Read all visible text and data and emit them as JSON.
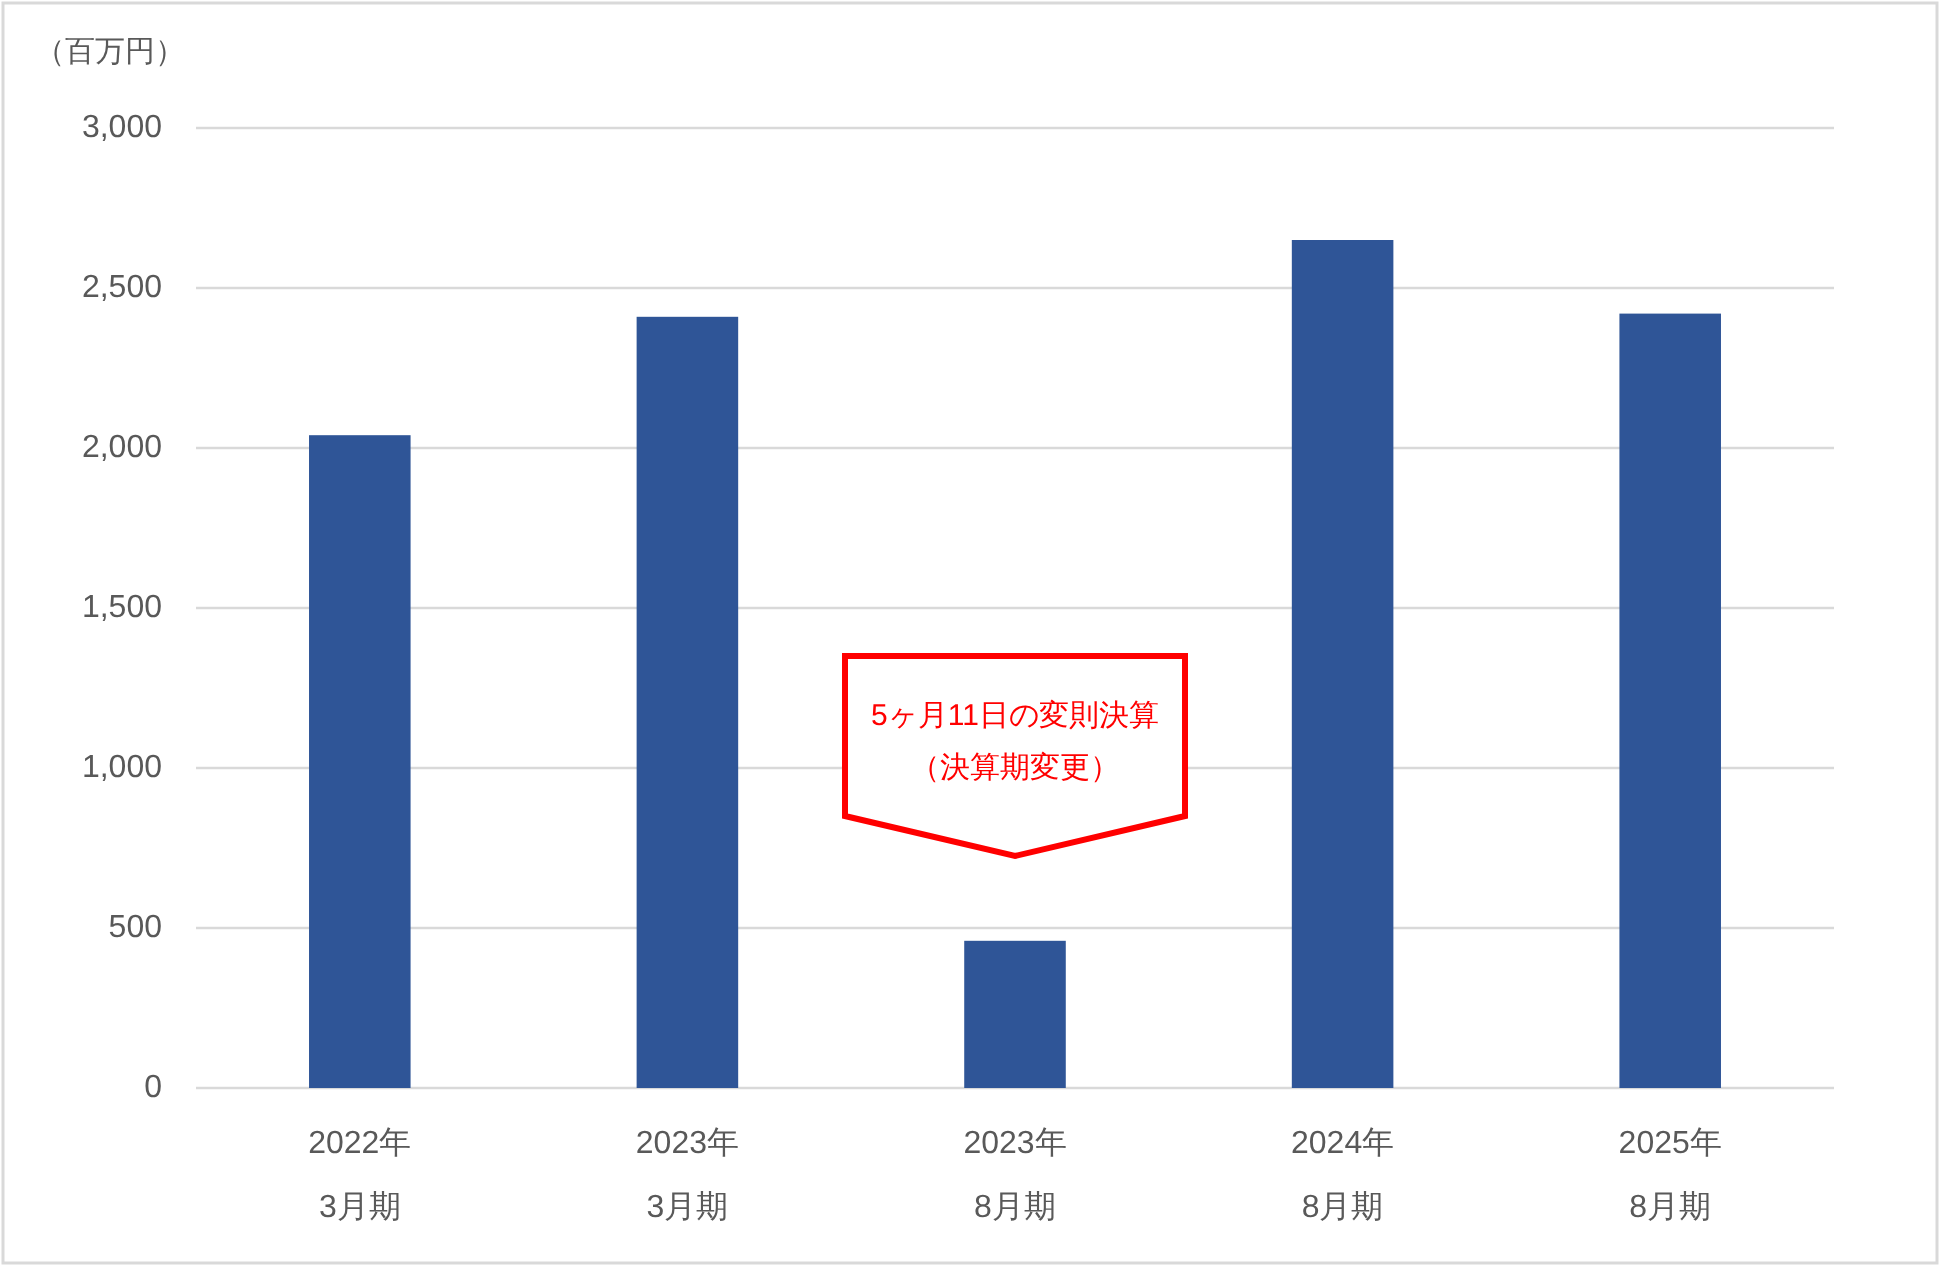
{
  "chart_data": {
    "type": "bar",
    "ylabel": "（百万円）",
    "categories": [
      "2022年\n3月期",
      "2023年\n3月期",
      "2023年\n8月期",
      "2024年\n8月期",
      "2025年\n8月期"
    ],
    "values": [
      2040,
      2410,
      460,
      2650,
      2420
    ],
    "color": "#2f5597",
    "ylim": [
      0,
      3000
    ],
    "yticks": [
      0,
      500,
      {
        "value": 1000,
        "label": "1,000"
      },
      {
        "value": 1500,
        "label": "1,500"
      },
      {
        "value": 2000,
        "label": "2,000"
      },
      {
        "value": 2500,
        "label": "2,500"
      },
      {
        "value": 3000,
        "label": "3,000"
      }
    ],
    "grid": "y",
    "annotations": [
      "5ヶ月11日の変則決算（決算期変更）"
    ]
  }
}
